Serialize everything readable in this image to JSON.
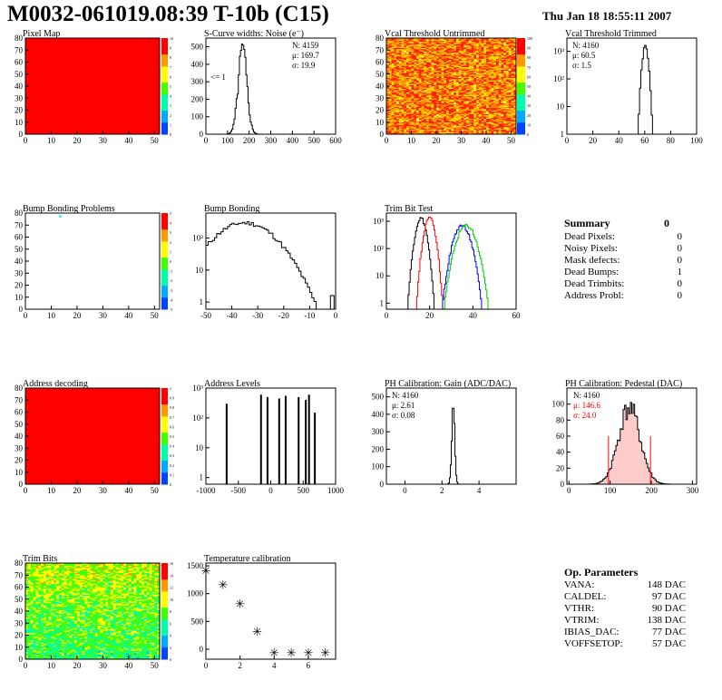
{
  "header": {
    "title": "M0032-061019.08:39 T-10b (C15)",
    "date": "Thu Jan 18 18:55:11 2007"
  },
  "panels": {
    "pixel_map": {
      "title": "Pixel Map"
    },
    "scurve": {
      "title": "S-Curve widths: Noise (e⁻)",
      "stats": [
        "N: 4159",
        "μ: 169.7",
        "σ: 19.9"
      ],
      "annotation": "<= 1"
    },
    "vcal_untrimmed": {
      "title": "Vcal Threshold Untrimmed"
    },
    "vcal_trimmed": {
      "title": "Vcal Threshold Trimmed",
      "stats": [
        "N: 4160",
        "μ: 60.5",
        "σ:  1.5"
      ]
    },
    "bump_problems": {
      "title": "Bump Bonding Problems"
    },
    "bump_bonding": {
      "title": "Bump Bonding"
    },
    "trim_bit_test": {
      "title": "Trim Bit Test"
    },
    "address_decoding": {
      "title": "Address decoding"
    },
    "address_levels": {
      "title": "Address Levels"
    },
    "ph_gain": {
      "title": "PH Calibration: Gain (ADC/DAC)",
      "stats": [
        "N: 4160",
        "μ: 2.61",
        "σ: 0.08"
      ]
    },
    "ph_pedestal": {
      "title": "PH Calibration: Pedestal (DAC)",
      "stats": [
        "N: 4160",
        "μ: 146.6",
        "σ: 24.0"
      ]
    },
    "trim_bits": {
      "title": "Trim Bits"
    },
    "temperature": {
      "title": "Temperature calibration"
    }
  },
  "summary": {
    "title": "Summary",
    "total": "0",
    "rows": [
      {
        "label": "Dead Pixels:",
        "value": "0"
      },
      {
        "label": "Noisy Pixels:",
        "value": "0"
      },
      {
        "label": "Mask defects:",
        "value": "0"
      },
      {
        "label": "Dead Bumps:",
        "value": "1"
      },
      {
        "label": "Dead Trimbits:",
        "value": "0"
      },
      {
        "label": "Address Probl:",
        "value": "0"
      }
    ]
  },
  "op_parameters": {
    "title": "Op. Parameters",
    "rows": [
      {
        "label": "VANA:",
        "value": "148 DAC"
      },
      {
        "label": "CALDEL:",
        "value": "97 DAC"
      },
      {
        "label": "VTHR:",
        "value": "90 DAC"
      },
      {
        "label": "VTRIM:",
        "value": "138 DAC"
      },
      {
        "label": "IBIAS_DAC:",
        "value": "77 DAC"
      },
      {
        "label": "VOFFSETOP:",
        "value": "57 DAC"
      }
    ]
  },
  "colors": {
    "red": "#ff0000",
    "green": "#00cc00",
    "blue": "#0000ff",
    "black": "#000000",
    "pedestal_stats": "#ff0000"
  },
  "chart_data": [
    {
      "id": "pixel_map",
      "type": "heatmap",
      "title": "Pixel Map",
      "xlim": [
        0,
        52
      ],
      "ylim": [
        0,
        80
      ],
      "xticks": [
        "0",
        "10",
        "20",
        "30",
        "40",
        "50"
      ],
      "yticks": [
        "0",
        "10",
        "20",
        "30",
        "40",
        "50",
        "60",
        "70",
        "80"
      ],
      "fill": "uniform",
      "value": 10,
      "zlim": [
        0,
        10
      ],
      "zticks": [
        "10",
        "9",
        "8",
        "7",
        "6",
        "5",
        "4",
        "3",
        "2",
        "1",
        "0"
      ]
    },
    {
      "id": "scurve",
      "type": "bar",
      "title": "S-Curve widths: Noise (e⁻)",
      "xlim": [
        0,
        600
      ],
      "ylim": [
        0,
        550
      ],
      "xticks": [
        "0",
        "100",
        "200",
        "300",
        "400",
        "500",
        "600"
      ],
      "yticks": [
        "0",
        "100",
        "200",
        "300",
        "400",
        "500"
      ],
      "mean": 169.7,
      "sigma": 19.9,
      "n": 4159,
      "peak": 480
    },
    {
      "id": "vcal_untrimmed",
      "type": "heatmap",
      "title": "Vcal Threshold Untrimmed",
      "xlim": [
        0,
        52
      ],
      "ylim": [
        0,
        80
      ],
      "xticks": [
        "0",
        "10",
        "20",
        "30",
        "40",
        "50"
      ],
      "yticks": [
        "0",
        "10",
        "20",
        "30",
        "40",
        "50",
        "60",
        "70",
        "80"
      ],
      "fill": "noise-warm",
      "zlim": [
        0,
        100
      ],
      "zticks": [
        "100",
        "90",
        "80",
        "70",
        "60",
        "50",
        "40",
        "30",
        "20",
        "10",
        "0"
      ]
    },
    {
      "id": "vcal_trimmed",
      "type": "bar",
      "title": "Vcal Threshold Trimmed",
      "log": true,
      "xlim": [
        0,
        100
      ],
      "ylim": [
        1,
        3000
      ],
      "xticks": [
        "0",
        "20",
        "40",
        "60",
        "80",
        "100"
      ],
      "yticks": [
        "1",
        "10",
        "10²",
        "10³"
      ],
      "mean": 60.5,
      "sigma": 1.5,
      "n": 4160,
      "peak": 1500
    },
    {
      "id": "bump_problems",
      "type": "heatmap",
      "title": "Bump Bonding Problems",
      "xlim": [
        0,
        52
      ],
      "ylim": [
        0,
        80
      ],
      "xticks": [
        "0",
        "10",
        "20",
        "30",
        "40",
        "50"
      ],
      "yticks": [
        "0",
        "10",
        "20",
        "30",
        "40",
        "50",
        "60",
        "70",
        "80"
      ],
      "fill": "sparse",
      "points": [
        {
          "x": 13,
          "y": 78
        }
      ],
      "zlim": [
        -5,
        5
      ],
      "zticks": [
        "5",
        "4",
        "3",
        "2",
        "1",
        "0",
        "-1",
        "-2",
        "-3",
        "-4",
        "-5"
      ]
    },
    {
      "id": "bump_bonding",
      "type": "bar",
      "title": "Bump Bonding",
      "log": true,
      "xlim": [
        -50,
        0
      ],
      "ylim": [
        0.6,
        600
      ],
      "xticks": [
        "-50",
        "-40",
        "-30",
        "-20",
        "-10",
        "0"
      ],
      "yticks": [
        "1",
        "10",
        "10²"
      ],
      "mean": -35,
      "sigma": 8,
      "n": 4160,
      "peak": 300
    },
    {
      "id": "trim_bit_test",
      "type": "bar",
      "title": "Trim Bit Test",
      "log": true,
      "xlim": [
        0,
        60
      ],
      "ylim": [
        0.6,
        2000
      ],
      "xticks": [
        "0",
        "20",
        "40",
        "60"
      ],
      "yticks": [
        "1",
        "10",
        "10²",
        "10³"
      ],
      "series": [
        {
          "name": "",
          "color": "#000000",
          "mean": 16,
          "sigma": 1.6,
          "peak": 1300
        },
        {
          "name": "",
          "color": "#ff0000",
          "mean": 20,
          "sigma": 1.6,
          "peak": 1300
        },
        {
          "name": "",
          "color": "#0000ff",
          "mean": 35,
          "sigma": 2.5,
          "peak": 700
        },
        {
          "name": "",
          "color": "#00cc00",
          "mean": 37,
          "sigma": 2.8,
          "peak": 700
        }
      ]
    },
    {
      "id": "address_decoding",
      "type": "heatmap",
      "title": "Address decoding",
      "xlim": [
        0,
        52
      ],
      "ylim": [
        0,
        80
      ],
      "xticks": [
        "0",
        "10",
        "20",
        "30",
        "40",
        "50"
      ],
      "yticks": [
        "0",
        "10",
        "20",
        "30",
        "40",
        "50",
        "60",
        "70",
        "80"
      ],
      "fill": "uniform",
      "value": 1,
      "zlim": [
        0,
        1
      ],
      "zticks": [
        "1",
        "0.9",
        "0.8",
        "0.7",
        "0.6",
        "0.5",
        "0.4",
        "0.3",
        "0.2",
        "0.1",
        "0"
      ]
    },
    {
      "id": "address_levels",
      "type": "bar",
      "title": "Address Levels",
      "log": true,
      "xlim": [
        -1000,
        1000
      ],
      "ylim": [
        0.6,
        1000
      ],
      "xticks": [
        "-1000",
        "-500",
        "0",
        "500",
        "1000"
      ],
      "yticks": [
        "1",
        "10",
        "10²",
        "10³"
      ],
      "spikes": [
        {
          "x": -680,
          "v": 300
        },
        {
          "x": -150,
          "v": 600
        },
        {
          "x": -50,
          "v": 500
        },
        {
          "x": 130,
          "v": 450
        },
        {
          "x": 230,
          "v": 550
        },
        {
          "x": 430,
          "v": 500
        },
        {
          "x": 540,
          "v": 400
        },
        {
          "x": 590,
          "v": 600
        },
        {
          "x": 680,
          "v": 150
        }
      ]
    },
    {
      "id": "ph_gain",
      "type": "bar",
      "title": "PH Calibration: Gain (ADC/DAC)",
      "xlim": [
        -1,
        6
      ],
      "ylim": [
        0,
        550
      ],
      "xticks": [
        "0",
        "2",
        "4"
      ],
      "xtickvals": [
        0,
        2,
        4
      ],
      "yticks": [
        "0",
        "100",
        "200",
        "300",
        "400",
        "500"
      ],
      "mean": 2.61,
      "sigma": 0.08,
      "n": 4160,
      "peak": 500
    },
    {
      "id": "ph_pedestal",
      "type": "bar",
      "title": "PH Calibration: Pedestal (DAC)",
      "xlim": [
        -5,
        310
      ],
      "ylim": [
        0,
        120
      ],
      "xticks": [
        "0",
        "100",
        "200",
        "300"
      ],
      "xtickvals": [
        0,
        100,
        200,
        300
      ],
      "yticks": [
        "0",
        "20",
        "40",
        "60",
        "80",
        "100"
      ],
      "mean": 146.6,
      "sigma": 24.0,
      "n": 4160,
      "peak": 95,
      "cut_lines": [
        96,
        198
      ]
    },
    {
      "id": "trim_bits",
      "type": "heatmap",
      "title": "Trim Bits",
      "xlim": [
        0,
        52
      ],
      "ylim": [
        0,
        80
      ],
      "xticks": [
        "0",
        "10",
        "20",
        "30",
        "40",
        "50"
      ],
      "yticks": [
        "0",
        "10",
        "20",
        "30",
        "40",
        "50",
        "60",
        "70",
        "80"
      ],
      "fill": "noise-cool",
      "zlim": [
        0,
        16
      ],
      "zticks": [
        "16",
        "14",
        "12",
        "10",
        "8",
        "6",
        "4",
        "2",
        "0"
      ]
    },
    {
      "id": "temperature",
      "type": "scatter",
      "title": "Temperature calibration",
      "xlim": [
        0,
        7.6
      ],
      "ylim": [
        -180,
        1550
      ],
      "xticks": [
        "0",
        "2",
        "4",
        "6"
      ],
      "xtickvals": [
        0,
        2,
        4,
        6
      ],
      "yticks": [
        "0",
        "500",
        "1000",
        "1500"
      ],
      "x": [
        0,
        1,
        2,
        3,
        4,
        5,
        6,
        7
      ],
      "y": [
        1420,
        1170,
        820,
        330,
        -60,
        -60,
        -60,
        -60
      ]
    }
  ]
}
